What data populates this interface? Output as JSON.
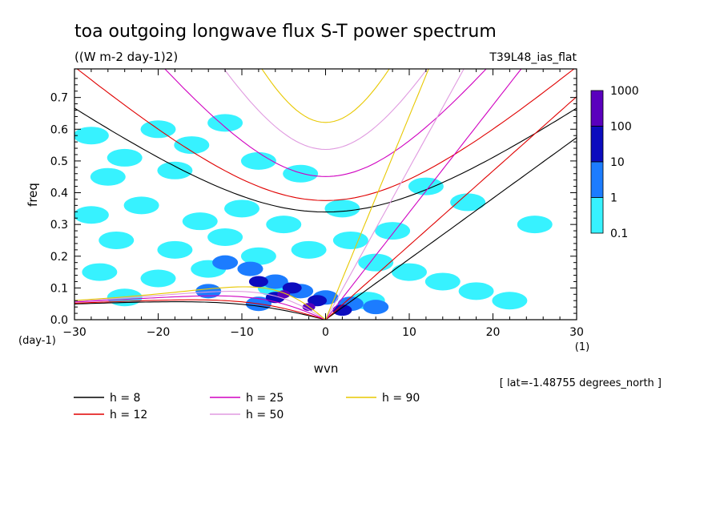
{
  "chart_data": {
    "type": "heatmap",
    "title": "toa outgoing longwave flux S-T power spectrum",
    "subtitle": "((W m-2 day-1)2)",
    "run_label": "T39L48_ias_flat",
    "xlabel": "wvn",
    "ylabel": "freq",
    "x_unit": "(1)",
    "y_unit": "(day-1)",
    "xlim": [
      -30,
      30
    ],
    "ylim": [
      0,
      0.79
    ],
    "xticks": [
      -30,
      -20,
      -10,
      0,
      10,
      20,
      30
    ],
    "yticks": [
      0.0,
      0.1,
      0.2,
      0.3,
      0.4,
      0.5,
      0.6,
      0.7
    ],
    "annotation": "[ lat=-1.48755 degrees_north ]",
    "colorbar": {
      "labels": [
        "1000",
        "100",
        "10",
        "1",
        "0.1"
      ],
      "colors": [
        "#5a00bd",
        "#0c0cbe",
        "#1c7cff",
        "#37f2ff"
      ]
    },
    "contour_levels": [
      0.1,
      1,
      10,
      100
    ],
    "blobs": [
      {
        "x": -28,
        "y": 0.58,
        "level": 0
      },
      {
        "x": -24,
        "y": 0.51,
        "level": 0
      },
      {
        "x": -20,
        "y": 0.6,
        "level": 0
      },
      {
        "x": -16,
        "y": 0.55,
        "level": 0
      },
      {
        "x": -12,
        "y": 0.62,
        "level": 0
      },
      {
        "x": -26,
        "y": 0.45,
        "level": 0
      },
      {
        "x": -18,
        "y": 0.47,
        "level": 0
      },
      {
        "x": -8,
        "y": 0.5,
        "level": 0
      },
      {
        "x": -3,
        "y": 0.46,
        "level": 0
      },
      {
        "x": -28,
        "y": 0.33,
        "level": 0
      },
      {
        "x": -22,
        "y": 0.36,
        "level": 0
      },
      {
        "x": -15,
        "y": 0.31,
        "level": 0
      },
      {
        "x": -10,
        "y": 0.35,
        "level": 0
      },
      {
        "x": -5,
        "y": 0.3,
        "level": 0
      },
      {
        "x": -25,
        "y": 0.25,
        "level": 0
      },
      {
        "x": -18,
        "y": 0.22,
        "level": 0
      },
      {
        "x": -12,
        "y": 0.26,
        "level": 0
      },
      {
        "x": -27,
        "y": 0.15,
        "level": 0
      },
      {
        "x": -20,
        "y": 0.13,
        "level": 0
      },
      {
        "x": -14,
        "y": 0.16,
        "level": 0
      },
      {
        "x": -8,
        "y": 0.2,
        "level": 0
      },
      {
        "x": -2,
        "y": 0.22,
        "level": 0
      },
      {
        "x": 3,
        "y": 0.25,
        "level": 0
      },
      {
        "x": 6,
        "y": 0.18,
        "level": 0
      },
      {
        "x": 10,
        "y": 0.15,
        "level": 0
      },
      {
        "x": 14,
        "y": 0.12,
        "level": 0
      },
      {
        "x": 18,
        "y": 0.09,
        "level": 0
      },
      {
        "x": 22,
        "y": 0.06,
        "level": 0
      },
      {
        "x": 2,
        "y": 0.35,
        "level": 0
      },
      {
        "x": 8,
        "y": 0.28,
        "level": 0
      },
      {
        "x": -24,
        "y": 0.07,
        "level": 0
      },
      {
        "x": -6,
        "y": 0.1,
        "level": 0
      },
      {
        "x": 5,
        "y": 0.06,
        "level": 0
      },
      {
        "x": 12,
        "y": 0.42,
        "level": 0
      },
      {
        "x": 17,
        "y": 0.37,
        "level": 0
      },
      {
        "x": 25,
        "y": 0.3,
        "level": 0
      },
      {
        "x": -12,
        "y": 0.18,
        "level": 1
      },
      {
        "x": -9,
        "y": 0.16,
        "level": 1
      },
      {
        "x": -6,
        "y": 0.12,
        "level": 1
      },
      {
        "x": -3,
        "y": 0.09,
        "level": 1
      },
      {
        "x": 0,
        "y": 0.07,
        "level": 1
      },
      {
        "x": 3,
        "y": 0.05,
        "level": 1
      },
      {
        "x": 6,
        "y": 0.04,
        "level": 1
      },
      {
        "x": -14,
        "y": 0.09,
        "level": 1
      },
      {
        "x": -8,
        "y": 0.05,
        "level": 1
      },
      {
        "x": -4,
        "y": 0.1,
        "level": 2
      },
      {
        "x": -6,
        "y": 0.07,
        "level": 2
      },
      {
        "x": -1,
        "y": 0.06,
        "level": 2
      },
      {
        "x": 2,
        "y": 0.03,
        "level": 2
      },
      {
        "x": -8,
        "y": 0.12,
        "level": 2
      },
      {
        "x": -2,
        "y": 0.04,
        "level": 3
      },
      {
        "x": -5,
        "y": 0.08,
        "level": 3
      }
    ],
    "series": [
      {
        "name": "h =  8",
        "color": "#000000",
        "h": 8
      },
      {
        "name": "h = 12",
        "color": "#e00000",
        "h": 12
      },
      {
        "name": "h = 25",
        "color": "#d000c0",
        "h": 25
      },
      {
        "name": "h = 50",
        "color": "#e09ae0",
        "h": 50
      },
      {
        "name": "h = 90",
        "color": "#e8c800",
        "h": 90
      }
    ],
    "legend_position": "bottom-left"
  }
}
